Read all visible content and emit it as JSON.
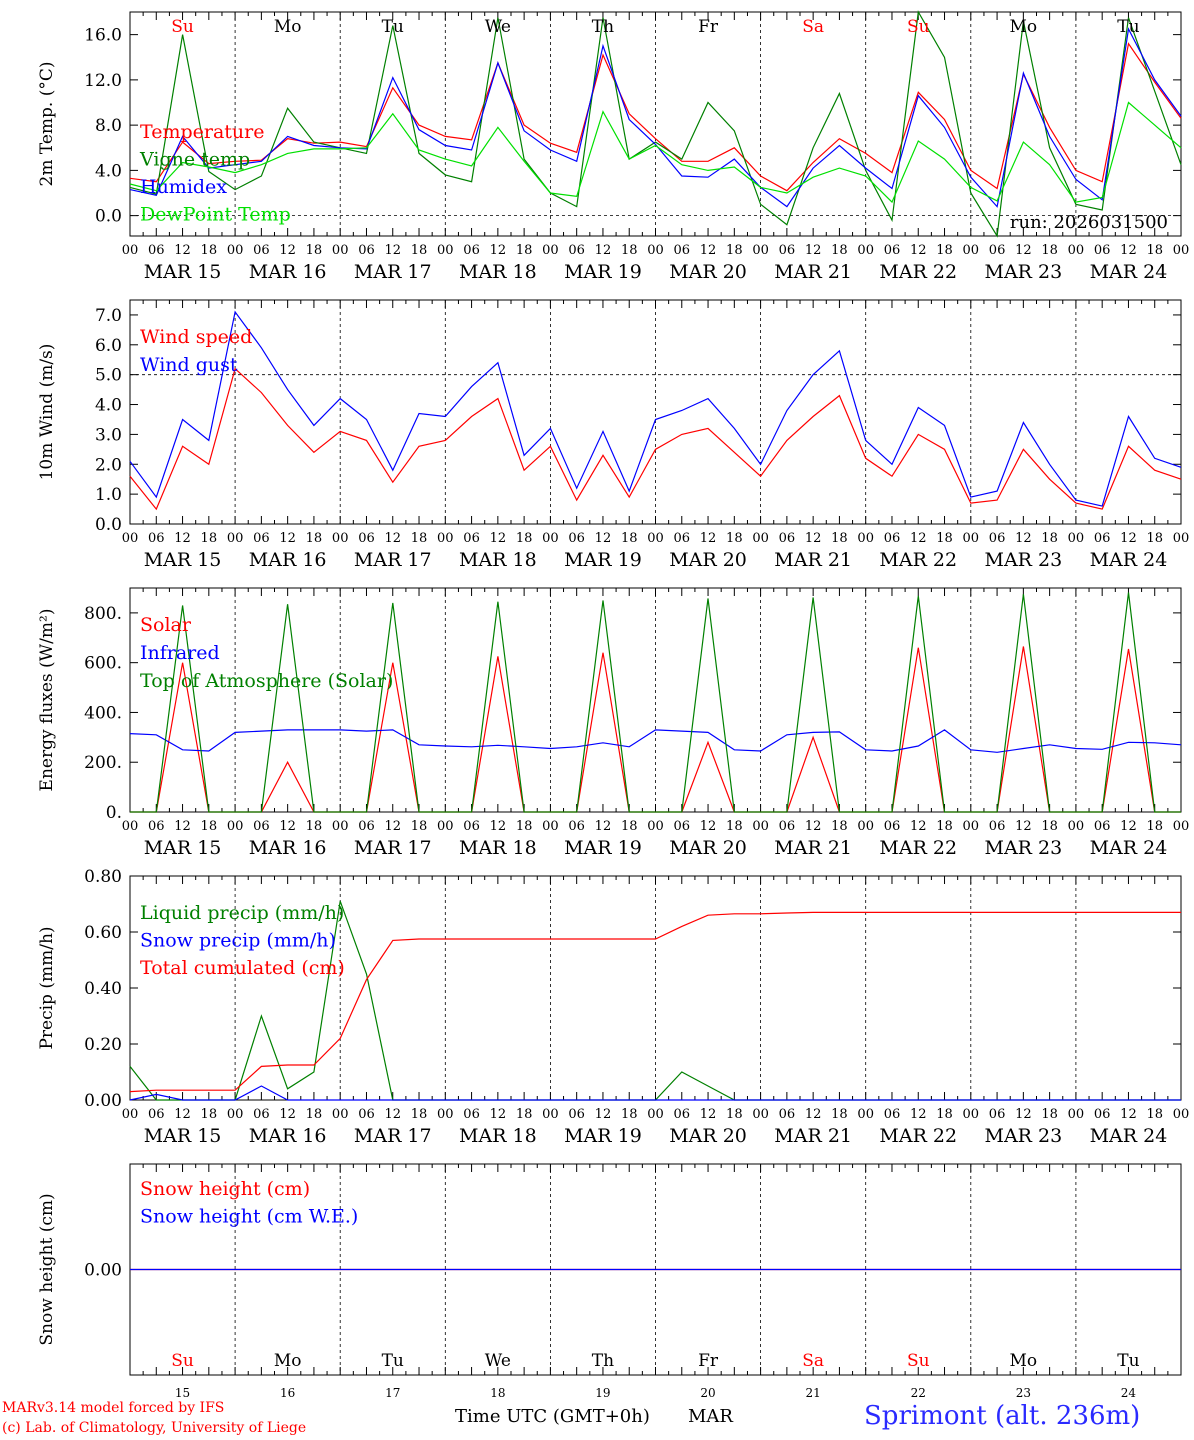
{
  "run_label": "run: 2026031500",
  "days": [
    "15",
    "16",
    "17",
    "18",
    "19",
    "20",
    "21",
    "22",
    "23",
    "24"
  ],
  "day_labels": [
    "MAR 15",
    "MAR 16",
    "MAR 17",
    "MAR 18",
    "MAR 19",
    "MAR 20",
    "MAR 21",
    "MAR 22",
    "MAR 23",
    "MAR 24"
  ],
  "weekdays": [
    "Su",
    "Mo",
    "Tu",
    "We",
    "Th",
    "Fr",
    "Sa",
    "Su",
    "Mo",
    "Tu"
  ],
  "weekend_days": [
    0,
    6,
    7
  ],
  "hour_ticks": [
    "00",
    "06",
    "12",
    "18"
  ],
  "x_title": "Time UTC (GMT+0h)",
  "month": "MAR",
  "station": "Sprimont (alt. 236m)",
  "credit_line1": "MARv3.14 model forced by IFS",
  "credit_line2": "(c) Lab. of Climatology, University of Liege",
  "colors": {
    "red": "#ff0000",
    "green": "#008000",
    "blue": "#0000ff",
    "lightgreen": "#00e000",
    "weekend": "#ff0000",
    "weekday": "#000000"
  },
  "chart_data": [
    {
      "type": "line",
      "ylabel": "2m Temp. (°C)",
      "ylim": [
        -1.8,
        18.0
      ],
      "yticks": [
        "0.0",
        "4.0",
        "8.0",
        "12.0",
        "16.0"
      ],
      "ytick_values": [
        0,
        4,
        8,
        12,
        16
      ],
      "dashed_ref": 0,
      "x": [
        0,
        6,
        12,
        18,
        24,
        30,
        36,
        42,
        48,
        54,
        60,
        66,
        72,
        78,
        84,
        90,
        96,
        102,
        108,
        114,
        120,
        126,
        132,
        138,
        144,
        150,
        156,
        162,
        168,
        174,
        180,
        186,
        192,
        198,
        204,
        210,
        216,
        222,
        228,
        234,
        240
      ],
      "series": [
        {
          "name": "Temperature",
          "color": "red",
          "values": [
            3.3,
            3.0,
            6.5,
            4.6,
            4.8,
            4.9,
            6.8,
            6.4,
            6.5,
            6.1,
            11.3,
            8.0,
            7.0,
            6.7,
            13.5,
            8.0,
            6.4,
            5.6,
            14.2,
            9.0,
            6.8,
            4.8,
            4.8,
            6.0,
            3.5,
            2.2,
            4.7,
            6.8,
            5.5,
            3.8,
            10.9,
            8.5,
            4.0,
            2.4,
            12.5,
            7.8,
            4.0,
            3.0,
            15.2,
            11.8,
            8.6
          ]
        },
        {
          "name": "Vigne temp",
          "color": "green",
          "values": [
            2.5,
            1.9,
            16.0,
            3.9,
            2.3,
            3.5,
            9.5,
            6.5,
            6.0,
            5.5,
            16.8,
            5.5,
            3.6,
            3.0,
            17.5,
            5.0,
            2.0,
            0.8,
            17.5,
            5.0,
            6.5,
            5.0,
            10.0,
            7.5,
            1.0,
            -0.8,
            6.0,
            10.8,
            4.0,
            -0.4,
            18.0,
            14.0,
            2.0,
            -1.8,
            17.2,
            6.0,
            1.0,
            0.5,
            17.5,
            11.0,
            4.5
          ]
        },
        {
          "name": "Humidex",
          "color": "blue",
          "values": [
            2.3,
            1.8,
            7.0,
            4.2,
            4.5,
            4.8,
            7.0,
            6.2,
            6.0,
            5.9,
            12.2,
            7.6,
            6.2,
            5.8,
            13.5,
            7.5,
            5.8,
            4.8,
            15.0,
            8.5,
            6.3,
            3.5,
            3.4,
            5.0,
            2.5,
            0.8,
            4.2,
            6.2,
            4.2,
            2.4,
            10.6,
            7.8,
            3.4,
            0.8,
            12.6,
            7.0,
            3.2,
            1.4,
            16.5,
            12.0,
            8.8
          ]
        },
        {
          "name": "DewPoint Temp",
          "color": "lightgreen",
          "values": [
            2.8,
            2.2,
            4.7,
            4.3,
            3.8,
            4.5,
            5.5,
            5.9,
            5.9,
            6.0,
            9.0,
            5.8,
            5.0,
            4.4,
            7.8,
            4.8,
            2.0,
            1.7,
            9.2,
            5.0,
            6.2,
            4.5,
            4.0,
            4.3,
            2.5,
            2.0,
            3.4,
            4.2,
            3.5,
            1.2,
            6.6,
            5.0,
            2.5,
            1.3,
            6.5,
            4.5,
            1.2,
            1.6,
            10.0,
            8.0,
            6.0
          ]
        }
      ]
    },
    {
      "type": "line",
      "ylabel": "10m Wind (m/s)",
      "ylim": [
        0,
        7.5
      ],
      "yticks": [
        "0.0",
        "1.0",
        "2.0",
        "3.0",
        "4.0",
        "5.0",
        "6.0",
        "7.0"
      ],
      "ytick_values": [
        0,
        1,
        2,
        3,
        4,
        5,
        6,
        7
      ],
      "dashed_ref": 5,
      "x": [
        0,
        6,
        12,
        18,
        24,
        30,
        36,
        42,
        48,
        54,
        60,
        66,
        72,
        78,
        84,
        90,
        96,
        102,
        108,
        114,
        120,
        126,
        132,
        138,
        144,
        150,
        156,
        162,
        168,
        174,
        180,
        186,
        192,
        198,
        204,
        210,
        216,
        222,
        228,
        234,
        240
      ],
      "series": [
        {
          "name": "Wind speed",
          "color": "red",
          "values": [
            1.6,
            0.5,
            2.6,
            2.0,
            5.2,
            4.4,
            3.3,
            2.4,
            3.1,
            2.8,
            1.4,
            2.6,
            2.8,
            3.6,
            4.2,
            1.8,
            2.6,
            0.8,
            2.3,
            0.9,
            2.5,
            3.0,
            3.2,
            2.4,
            1.6,
            2.8,
            3.6,
            4.3,
            2.2,
            1.6,
            3.0,
            2.5,
            0.7,
            0.8,
            2.5,
            1.5,
            0.7,
            0.5,
            2.6,
            1.8,
            1.5
          ]
        },
        {
          "name": "Wind gust",
          "color": "blue",
          "values": [
            2.1,
            0.9,
            3.5,
            2.8,
            7.1,
            5.9,
            4.5,
            3.3,
            4.2,
            3.5,
            1.8,
            3.7,
            3.6,
            4.6,
            5.4,
            2.3,
            3.2,
            1.2,
            3.1,
            1.1,
            3.5,
            3.8,
            4.2,
            3.2,
            2.0,
            3.8,
            5.0,
            5.8,
            2.8,
            2.0,
            3.9,
            3.3,
            0.9,
            1.1,
            3.4,
            2.0,
            0.8,
            0.6,
            3.6,
            2.2,
            1.9
          ]
        }
      ]
    },
    {
      "type": "line",
      "ylabel": "Energy fluxes (W/m²)",
      "ylim": [
        0,
        900
      ],
      "yticks": [
        "0.",
        "200.",
        "400.",
        "600.",
        "800."
      ],
      "ytick_values": [
        0,
        200,
        400,
        600,
        800
      ],
      "dashed_ref": null,
      "x": [
        0,
        6,
        12,
        18,
        24,
        30,
        36,
        42,
        48,
        54,
        60,
        66,
        72,
        78,
        84,
        90,
        96,
        102,
        108,
        114,
        120,
        126,
        132,
        138,
        144,
        150,
        156,
        162,
        168,
        174,
        180,
        186,
        192,
        198,
        204,
        210,
        216,
        222,
        228,
        234,
        240
      ],
      "series": [
        {
          "name": "Solar",
          "color": "red",
          "values": [
            0,
            0,
            600,
            0,
            0,
            0,
            200,
            0,
            0,
            0,
            600,
            0,
            0,
            0,
            625,
            0,
            0,
            0,
            640,
            0,
            0,
            0,
            280,
            0,
            0,
            0,
            300,
            0,
            0,
            0,
            660,
            0,
            0,
            0,
            665,
            0,
            0,
            0,
            655,
            0,
            0
          ]
        },
        {
          "name": "Infrared",
          "color": "blue",
          "values": [
            315,
            310,
            250,
            245,
            320,
            325,
            330,
            330,
            330,
            325,
            330,
            270,
            265,
            262,
            268,
            262,
            255,
            262,
            278,
            262,
            330,
            325,
            320,
            250,
            245,
            310,
            320,
            322,
            250,
            245,
            265,
            330,
            250,
            240,
            255,
            270,
            255,
            252,
            280,
            278,
            270
          ]
        },
        {
          "name": "Top of Atmosphere (Solar)",
          "color": "green",
          "values": [
            0,
            0,
            830,
            0,
            0,
            0,
            835,
            0,
            0,
            0,
            840,
            0,
            0,
            0,
            845,
            0,
            0,
            0,
            850,
            0,
            0,
            0,
            858,
            0,
            0,
            0,
            862,
            0,
            0,
            0,
            868,
            0,
            0,
            0,
            875,
            0,
            0,
            0,
            882,
            0,
            0
          ]
        }
      ]
    },
    {
      "type": "line",
      "ylabel": "Precip (mm/h)",
      "ylim": [
        0,
        0.8
      ],
      "yticks": [
        "0.00",
        "0.20",
        "0.40",
        "0.60",
        "0.80"
      ],
      "ytick_values": [
        0,
        0.2,
        0.4,
        0.6,
        0.8
      ],
      "dashed_ref": null,
      "x": [
        0,
        6,
        12,
        18,
        24,
        30,
        36,
        42,
        48,
        54,
        60,
        66,
        72,
        78,
        84,
        90,
        96,
        102,
        108,
        114,
        120,
        126,
        132,
        138,
        144,
        150,
        156,
        162,
        168,
        174,
        180,
        186,
        192,
        198,
        204,
        210,
        216,
        222,
        228,
        234,
        240
      ],
      "series": [
        {
          "name": "Liquid precip (mm/h)",
          "color": "green",
          "values": [
            0.12,
            0.0,
            0,
            0,
            0,
            0.3,
            0.04,
            0.1,
            0.71,
            0.45,
            0,
            0,
            0,
            0,
            0,
            0,
            0,
            0,
            0,
            0,
            0,
            0.1,
            0.05,
            0,
            0,
            0,
            0,
            0,
            0,
            0,
            0,
            0,
            0,
            0,
            0,
            0,
            0,
            0,
            0,
            0,
            0
          ]
        },
        {
          "name": "Snow precip (mm/h)",
          "color": "blue",
          "values": [
            0,
            0.02,
            0,
            0,
            0,
            0.05,
            0,
            0,
            0,
            0,
            0,
            0,
            0,
            0,
            0,
            0,
            0,
            0,
            0,
            0,
            0,
            0,
            0,
            0,
            0,
            0,
            0,
            0,
            0,
            0,
            0,
            0,
            0,
            0,
            0,
            0,
            0,
            0,
            0,
            0,
            0
          ]
        },
        {
          "name": "Total cumulated (cm)",
          "color": "red",
          "values": [
            0.03,
            0.035,
            0.035,
            0.035,
            0.035,
            0.12,
            0.125,
            0.125,
            0.22,
            0.43,
            0.57,
            0.575,
            0.575,
            0.575,
            0.575,
            0.575,
            0.575,
            0.575,
            0.575,
            0.575,
            0.575,
            0.62,
            0.66,
            0.665,
            0.665,
            0.668,
            0.67,
            0.67,
            0.67,
            0.67,
            0.67,
            0.67,
            0.67,
            0.67,
            0.67,
            0.67,
            0.67,
            0.67,
            0.67,
            0.67,
            0.67
          ]
        }
      ]
    },
    {
      "type": "line",
      "ylabel": "Snow height (cm)",
      "ylim": [
        -1,
        1
      ],
      "yticks": [
        "0.00"
      ],
      "ytick_values": [
        0
      ],
      "dashed_ref": null,
      "x": [
        0,
        240
      ],
      "series": [
        {
          "name": "Snow height (cm)",
          "color": "red",
          "values": [
            0,
            0
          ]
        },
        {
          "name": "Snow height (cm W.E.)",
          "color": "blue",
          "values": [
            0,
            0
          ]
        }
      ]
    }
  ]
}
